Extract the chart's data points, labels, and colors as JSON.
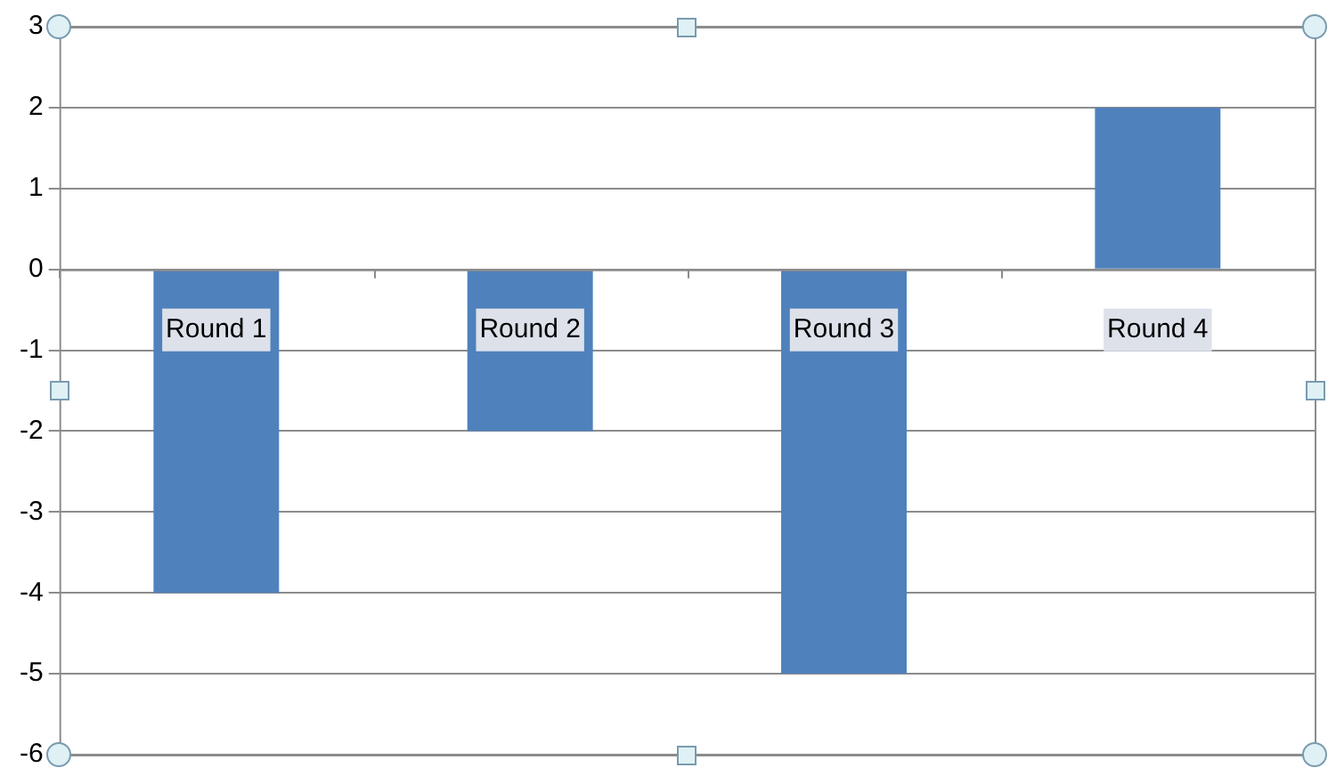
{
  "chart_data": {
    "type": "bar",
    "categories": [
      "Round 1",
      "Round 2",
      "Round 3",
      "Round 4"
    ],
    "values": [
      -4,
      -2,
      -5,
      2
    ],
    "color": "#4f81bd",
    "ylim": [
      -6,
      3
    ],
    "yticks": [
      -6,
      -5,
      -4,
      -3,
      -2,
      -1,
      0,
      1,
      2,
      3
    ],
    "grid": "y",
    "legend": false
  }
}
